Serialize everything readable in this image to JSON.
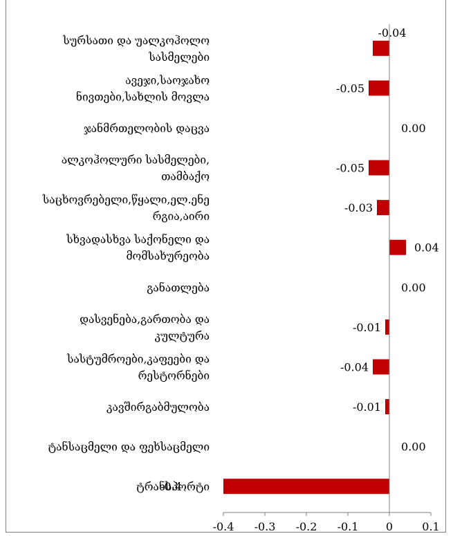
{
  "chart_data": {
    "type": "bar",
    "orientation": "horizontal",
    "title": "",
    "xlabel": "",
    "ylabel": "",
    "xlim": [
      -0.4,
      0.1
    ],
    "x_ticks": [
      "-0.4",
      "-0.3",
      "-0.2",
      "-0.1",
      "0",
      "0.1"
    ],
    "bar_color": "#C00000",
    "grid": false,
    "legend": "none",
    "categories": [
      "სურსათი და უალკოჰოლო სასმელები",
      "ავეჯი,საოჯახო ნივთები,სახლის მოვლა",
      "ჯანმრთელობის დაცვა",
      "ალკოჰოლური სასმელები, თამბაქო",
      "საცხოვრებელი,წყალი,ელ.ენერგია,აირი",
      "სხვადასხვა საქონელი და მომსახურეობა",
      "განათლება",
      "დასვენება,გართობა და კულტურა",
      "სასტუმროები,კაფეები და რესტორნები",
      "კავშირგაბმულობა",
      "ტანსაცმელი და ფეხსაცმელი",
      "ტრანსპორტი"
    ],
    "category_label_lines": [
      [
        "სურსათი და უალკოჰოლო",
        "სასმელები"
      ],
      [
        "ავეჯი,საოჯახო",
        "ნივთები,სახლის მოვლა"
      ],
      [
        "ჯანმრთელობის დაცვა"
      ],
      [
        "ალკოჰოლური სასმელები,",
        "თამბაქო"
      ],
      [
        "საცხოვრებელი,წყალი,ელ.ენე",
        "რგია,აირი"
      ],
      [
        "სხვადასხვა საქონელი და",
        "მომსახურეობა"
      ],
      [
        "განათლება"
      ],
      [
        "დასვენება,გართობა და",
        "კულტურა"
      ],
      [
        "სასტუმროები,კაფეები და",
        "რესტორნები"
      ],
      [
        "კავშირგაბმულობა"
      ],
      [
        "ტანსაცმელი და ფეხსაცმელი"
      ],
      [
        "ტრანსპორტი"
      ]
    ],
    "values": [
      -0.04,
      -0.05,
      0.0,
      -0.05,
      -0.03,
      0.04,
      0.0,
      -0.01,
      -0.04,
      -0.01,
      0.0,
      -0.4
    ],
    "data_labels": [
      "-0.04",
      "-0.05",
      "0.00",
      "-0.05",
      "-0.03",
      "0.04",
      "0.00",
      "-0.01",
      "-0.04",
      "-0.01",
      "0.00",
      "-0.4"
    ]
  }
}
